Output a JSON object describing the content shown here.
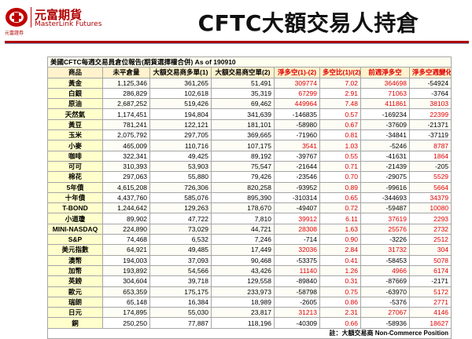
{
  "logo": {
    "cn": "元富期貨",
    "en": "MasterLink Futures",
    "small": "元富證券"
  },
  "title": "CFTC大額交易人持倉",
  "table": {
    "caption": "美國CFTC每週交易員倉位報告(期貨選擇權合併) As of  190910",
    "headers": [
      "商品",
      "未平倉量",
      "大額交易商多單(1)",
      "大額交易商空單(2)",
      "淨多空(1)-(2)",
      "多空比(1)/(2)",
      "前週淨多空",
      "淨多空週變化"
    ],
    "rows": [
      [
        "黃金",
        "1,125,346",
        "361,265",
        "51,491",
        "309774",
        "7.02",
        "364698",
        "-54924"
      ],
      [
        "白銀",
        "286,829",
        "102,618",
        "35,319",
        "67299",
        "2.91",
        "71063",
        "-3764"
      ],
      [
        "原油",
        "2,687,252",
        "519,426",
        "69,462",
        "449964",
        "7.48",
        "411861",
        "38103"
      ],
      [
        "天然氣",
        "1,174,451",
        "194,804",
        "341,639",
        "-146835",
        "0.57",
        "-169234",
        "22399"
      ],
      [
        "黃豆",
        "781,241",
        "122,121",
        "181,101",
        "-58980",
        "0.67",
        "-37609",
        "-21371"
      ],
      [
        "玉米",
        "2,075,792",
        "297,705",
        "369,665",
        "-71960",
        "0.81",
        "-34841",
        "-37119"
      ],
      [
        "小麥",
        "465,009",
        "110,716",
        "107,175",
        "3541",
        "1.03",
        "-5246",
        "8787"
      ],
      [
        "咖啡",
        "322,341",
        "49,425",
        "89,192",
        "-39767",
        "0.55",
        "-41631",
        "1864"
      ],
      [
        "可可",
        "310,393",
        "53,903",
        "75,547",
        "-21644",
        "0.71",
        "-21439",
        "-205"
      ],
      [
        "棉花",
        "297,063",
        "55,880",
        "79,426",
        "-23546",
        "0.70",
        "-29075",
        "5529"
      ],
      [
        "5年債",
        "4,615,208",
        "726,306",
        "820,258",
        "-93952",
        "0.89",
        "-99616",
        "5664"
      ],
      [
        "十年債",
        "4,437,760",
        "585,076",
        "895,390",
        "-310314",
        "0.65",
        "-344693",
        "34379"
      ],
      [
        "T-BOND",
        "1,244,642",
        "129,263",
        "178,670",
        "-49407",
        "0.72",
        "-59487",
        "10080"
      ],
      [
        "小道瓊",
        "89,902",
        "47,722",
        "7,810",
        "39912",
        "6.11",
        "37619",
        "2293"
      ],
      [
        "MINI-NASDAQ",
        "224,890",
        "73,029",
        "44,721",
        "28308",
        "1.63",
        "25576",
        "2732"
      ],
      [
        "S&P",
        "74,468",
        "6,532",
        "7,246",
        "-714",
        "0.90",
        "-3226",
        "2512"
      ],
      [
        "美元指數",
        "64,921",
        "49,485",
        "17,449",
        "32036",
        "2.84",
        "31732",
        "304"
      ],
      [
        "澳幣",
        "194,003",
        "37,093",
        "90,468",
        "-53375",
        "0.41",
        "-58453",
        "5078"
      ],
      [
        "加幣",
        "193,892",
        "54,566",
        "43,426",
        "11140",
        "1.26",
        "4966",
        "6174"
      ],
      [
        "英鎊",
        "304,604",
        "39,718",
        "129,558",
        "-89840",
        "0.31",
        "-87669",
        "-2171"
      ],
      [
        "歐元",
        "653,359",
        "175,175",
        "233,973",
        "-58798",
        "0.75",
        "-63970",
        "5172"
      ],
      [
        "瑞朗",
        "65,148",
        "16,384",
        "18,989",
        "-2605",
        "0.86",
        "-5376",
        "2771"
      ],
      [
        "日元",
        "174,895",
        "55,030",
        "23,817",
        "31213",
        "2.31",
        "27067",
        "4146"
      ],
      [
        "銅",
        "250,250",
        "77,887",
        "118,196",
        "-40309",
        "0.66",
        "-58936",
        "18627"
      ]
    ],
    "footnote": "註：大額交易商 Non-Commerce Position"
  },
  "colors": {
    "accent_red": "#e00000",
    "brand_red": "#b00000",
    "header_bg": "#fff2cc",
    "name_bg": "#ffffcc"
  }
}
